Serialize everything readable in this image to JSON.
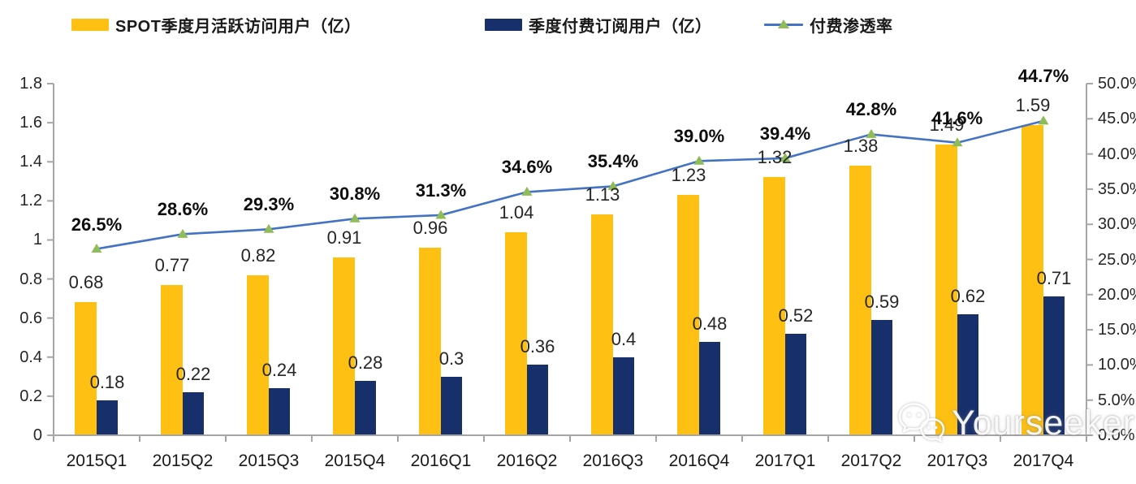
{
  "legend": {
    "items": [
      {
        "label": "SPOT季度月活跃访问用户（亿）",
        "swatch": "bar",
        "color": "#FDC013"
      },
      {
        "label": "季度付费订阅用户（亿）",
        "swatch": "bar",
        "color": "#172F6B"
      },
      {
        "label": "付费渗透率",
        "swatch": "line-marker",
        "line_color": "#4472C4",
        "marker_color": "#8FBC56"
      }
    ]
  },
  "watermark": {
    "text": "Yourseeker",
    "icon": "wechat-bubbles-icon"
  },
  "chart_data": {
    "type": "bar",
    "title": "",
    "categories": [
      "2015Q1",
      "2015Q2",
      "2015Q3",
      "2015Q4",
      "2016Q1",
      "2016Q2",
      "2016Q3",
      "2016Q4",
      "2017Q1",
      "2017Q2",
      "2017Q3",
      "2017Q4"
    ],
    "series": [
      {
        "name": "SPOT季度月活跃访问用户（亿）",
        "type": "bar",
        "axis": "left",
        "color": "#FDC013",
        "values": [
          0.68,
          0.77,
          0.82,
          0.91,
          0.96,
          1.04,
          1.13,
          1.23,
          1.32,
          1.38,
          1.49,
          1.59
        ]
      },
      {
        "name": "季度付费订阅用户（亿）",
        "type": "bar",
        "axis": "left",
        "color": "#172F6B",
        "values": [
          0.18,
          0.22,
          0.24,
          0.28,
          0.3,
          0.36,
          0.4,
          0.48,
          0.52,
          0.59,
          0.62,
          0.71
        ]
      },
      {
        "name": "付费渗透率",
        "type": "line",
        "axis": "right",
        "color": "#4472C4",
        "marker": "triangle-up",
        "marker_color": "#8FBC56",
        "unit": "%",
        "values": [
          26.5,
          28.6,
          29.3,
          30.8,
          31.3,
          34.6,
          35.4,
          39.0,
          39.4,
          42.8,
          41.6,
          44.7
        ]
      }
    ],
    "left_axis": {
      "min": 0,
      "max": 1.8,
      "tick_step": 0.2,
      "tick_labels": [
        "0",
        "0.2",
        "0.4",
        "0.6",
        "0.8",
        "1",
        "1.2",
        "1.4",
        "1.6",
        "1.8"
      ]
    },
    "right_axis": {
      "min": 0,
      "max": 50,
      "tick_step": 5,
      "tick_labels": [
        "0.0%",
        "5.0%",
        "10.0%",
        "15.0%",
        "20.0%",
        "25.0%",
        "30.0%",
        "35.0%",
        "40.0%",
        "45.0%",
        "50.0%"
      ]
    },
    "grid": false,
    "data_labels": true,
    "legend_position": "top",
    "axis_color": "#A6A6A6"
  }
}
